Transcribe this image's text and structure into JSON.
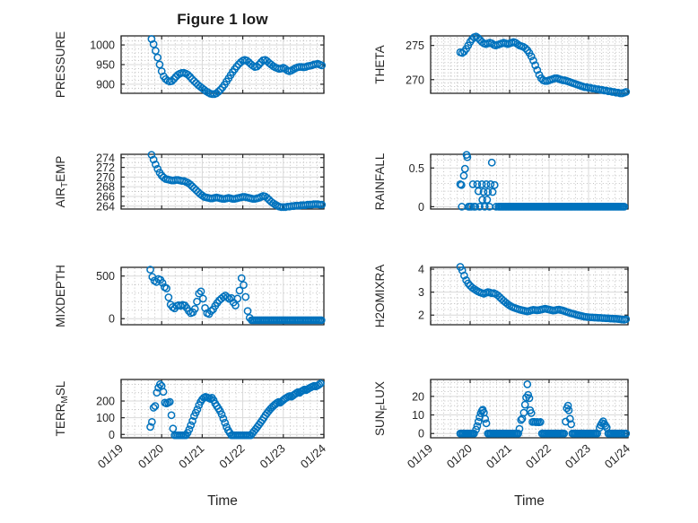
{
  "figure": {
    "title": "Figure 1 low",
    "xlabel": "Time"
  },
  "style": {
    "marker_color": "#0072BD",
    "axis_color": "#262626",
    "text_color": "#262626",
    "major_grid": "#d9d9d9",
    "minor_grid": "#b0b0b0",
    "background": "#ffffff",
    "marker_radius": 3.6,
    "marker_stroke": 1.5
  },
  "x_axis": {
    "lim": [
      19,
      24
    ],
    "ticks": [
      19,
      20,
      21,
      22,
      23,
      24
    ],
    "labels": [
      "01/19",
      "01/20",
      "01/21",
      "01/22",
      "01/23",
      "01/24"
    ],
    "minor_per_day": 6,
    "label": "Time"
  },
  "chart_data": [
    {
      "type": "scatter",
      "name": "PRESSURE",
      "row": 0,
      "col": 0,
      "ylabel_parts": [
        {
          "t": "PRESSURE"
        }
      ],
      "ylim": [
        877,
        1023
      ],
      "yticks": [
        900,
        950,
        1000
      ],
      "ytick_labels": [
        "900",
        "950",
        "1000"
      ],
      "yminor": 10,
      "series": {
        "t0": 19.75,
        "dt": 0.05,
        "y": [
          1015,
          1002,
          985,
          968,
          950,
          933,
          920,
          913,
          909,
          907,
          908,
          913,
          919,
          924,
          927,
          929,
          929,
          927,
          924,
          919,
          913,
          908,
          903,
          898,
          894,
          890,
          886,
          882,
          879,
          876,
          875,
          875,
          877,
          881,
          886,
          892,
          899,
          907,
          915,
          923,
          931,
          938,
          945,
          951,
          956,
          960,
          962,
          960,
          956,
          951,
          947,
          944,
          945,
          950,
          956,
          961,
          962,
          959,
          954,
          950,
          946,
          943,
          941,
          939,
          940,
          942,
          939,
          935,
          933,
          935,
          938,
          941,
          943,
          944,
          944,
          943,
          944,
          946,
          947,
          948,
          950,
          951,
          952,
          950,
          948
        ]
      }
    },
    {
      "type": "scatter",
      "name": "THETA",
      "row": 0,
      "col": 1,
      "ylabel_parts": [
        {
          "t": "THETA"
        }
      ],
      "ylim": [
        268.0,
        276.4
      ],
      "yticks": [
        270,
        275
      ],
      "ytick_labels": [
        "270",
        "275"
      ],
      "yminor": 0.5,
      "series": {
        "t0": 19.75,
        "dt": 0.05,
        "y": [
          274.0,
          273.9,
          274.1,
          274.5,
          275.0,
          275.5,
          275.9,
          276.2,
          276.3,
          276.1,
          275.8,
          275.5,
          275.3,
          275.2,
          275.3,
          275.4,
          275.3,
          275.1,
          275.0,
          275.1,
          275.2,
          275.3,
          275.4,
          275.3,
          275.2,
          275.3,
          275.4,
          275.5,
          275.4,
          275.2,
          275.0,
          274.9,
          274.8,
          274.6,
          274.3,
          273.9,
          273.4,
          272.8,
          272.1,
          271.4,
          270.7,
          270.2,
          269.9,
          269.8,
          269.8,
          269.9,
          270.0,
          270.1,
          270.2,
          270.2,
          270.1,
          270.0,
          269.9,
          269.9,
          269.8,
          269.7,
          269.6,
          269.5,
          269.4,
          269.3,
          269.2,
          269.1,
          269.0,
          268.9,
          268.9,
          268.8,
          268.8,
          268.7,
          268.7,
          268.6,
          268.6,
          268.5,
          268.5,
          268.4,
          268.4,
          268.3,
          268.3,
          268.2,
          268.2,
          268.1,
          268.1,
          268.0,
          268.0,
          268.1,
          268.2
        ]
      }
    },
    {
      "type": "scatter",
      "name": "AIR_TEMP",
      "row": 1,
      "col": 0,
      "ylabel_parts": [
        {
          "t": "AIR"
        },
        {
          "t": "T",
          "sub": true
        },
        {
          "t": "EMP"
        }
      ],
      "ylim": [
        263.4,
        274.7
      ],
      "yticks": [
        264,
        266,
        268,
        270,
        272,
        274
      ],
      "ytick_labels": [
        "264",
        "266",
        "268",
        "270",
        "272",
        "274"
      ],
      "yminor": 1,
      "series": {
        "t0": 19.75,
        "dt": 0.05,
        "y": [
          274.6,
          273.6,
          272.6,
          271.7,
          270.9,
          270.3,
          269.9,
          269.6,
          269.5,
          269.4,
          269.3,
          269.3,
          269.4,
          269.4,
          269.3,
          269.2,
          269.2,
          269.0,
          268.8,
          268.5,
          268.1,
          267.7,
          267.3,
          266.9,
          266.5,
          266.2,
          265.9,
          265.8,
          265.7,
          265.6,
          265.6,
          265.7,
          265.8,
          265.7,
          265.6,
          265.5,
          265.5,
          265.6,
          265.7,
          265.6,
          265.5,
          265.5,
          265.6,
          265.7,
          265.8,
          265.9,
          265.9,
          265.8,
          265.7,
          265.6,
          265.5,
          265.5,
          265.6,
          265.7,
          265.9,
          266.1,
          266.0,
          265.7,
          265.3,
          264.9,
          264.6,
          264.3,
          264.1,
          263.9,
          263.8,
          263.8,
          263.8,
          263.9,
          263.9,
          264.0,
          264.0,
          264.1,
          264.1,
          264.1,
          264.2,
          264.2,
          264.2,
          264.3,
          264.3,
          264.3,
          264.4,
          264.4,
          264.4,
          264.3,
          264.3
        ]
      }
    },
    {
      "type": "scatter",
      "name": "RAINFALL",
      "row": 1,
      "col": 1,
      "ylabel_parts": [
        {
          "t": "RAINFALL"
        }
      ],
      "ylim": [
        -0.03,
        0.677
      ],
      "yticks": [
        0,
        0.5
      ],
      "ytick_labels": [
        "0",
        "0.5"
      ],
      "yminor": 0.1,
      "points": [
        [
          19.75,
          0.29
        ],
        [
          19.78,
          0.28
        ],
        [
          19.84,
          0.4
        ],
        [
          19.87,
          0.49
        ],
        [
          19.91,
          0.67
        ],
        [
          19.93,
          0.64
        ],
        [
          19.79,
          0
        ],
        [
          19.96,
          0
        ],
        [
          19.99,
          0
        ],
        [
          20.03,
          0
        ],
        [
          20.07,
          0.29
        ],
        [
          20.1,
          0
        ],
        [
          20.13,
          0
        ],
        [
          20.18,
          0.29
        ],
        [
          20.21,
          0.2
        ],
        [
          20.24,
          0
        ],
        [
          20.3,
          0.29
        ],
        [
          20.31,
          0.09
        ],
        [
          20.34,
          0.19
        ],
        [
          20.37,
          0
        ],
        [
          20.41,
          0.29
        ],
        [
          20.43,
          0.09
        ],
        [
          20.45,
          0.19
        ],
        [
          20.49,
          0
        ],
        [
          20.52,
          0.29
        ],
        [
          20.55,
          0.57
        ],
        [
          20.57,
          0.19
        ],
        [
          20.62,
          0.28
        ],
        [
          20.66,
          0
        ]
      ],
      "runs": [
        {
          "t0": 20.72,
          "t1": 23.93,
          "dt": 0.035,
          "v": 0
        }
      ]
    },
    {
      "type": "scatter",
      "name": "MIXDEPTH",
      "row": 2,
      "col": 0,
      "ylabel_parts": [
        {
          "t": "MIXDEPTH"
        }
      ],
      "ylim": [
        -71,
        602
      ],
      "yticks": [
        0,
        500
      ],
      "ytick_labels": [
        "0",
        "500"
      ],
      "yminor": 100,
      "series": {
        "t0": 19.72,
        "dt": 0.05,
        "y": [
          575,
          490,
          445,
          430,
          465,
          455,
          420,
          370,
          355,
          250,
          165,
          135,
          120,
          150,
          158,
          150,
          162,
          155,
          125,
          90,
          65,
          75,
          115,
          200,
          295,
          320,
          235,
          125,
          65,
          55,
          90,
          110,
          150,
          185,
          215,
          235,
          255,
          272,
          250,
          232,
          242,
          190,
          155,
          235,
          330,
          475,
          395,
          255,
          90,
          10
        ]
      },
      "runs": [
        {
          "t0": 22.22,
          "t1": 23.94,
          "dt": 0.04,
          "v": -18
        }
      ]
    },
    {
      "type": "scatter",
      "name": "H2OMIXRA",
      "row": 2,
      "col": 1,
      "ylabel_parts": [
        {
          "t": "H2OMIXRA"
        }
      ],
      "ylim": [
        1.58,
        4.08
      ],
      "yticks": [
        2,
        3,
        4
      ],
      "ytick_labels": [
        "2",
        "3",
        "4"
      ],
      "yminor": 0.25,
      "series": {
        "t0": 19.75,
        "dt": 0.05,
        "y": [
          4.1,
          3.95,
          3.72,
          3.52,
          3.38,
          3.28,
          3.2,
          3.14,
          3.08,
          3.03,
          2.99,
          2.96,
          2.93,
          2.97,
          3.0,
          2.98,
          2.95,
          2.96,
          2.92,
          2.86,
          2.78,
          2.7,
          2.62,
          2.55,
          2.48,
          2.42,
          2.37,
          2.33,
          2.3,
          2.27,
          2.24,
          2.22,
          2.2,
          2.18,
          2.16,
          2.18,
          2.21,
          2.23,
          2.22,
          2.21,
          2.22,
          2.24,
          2.26,
          2.28,
          2.26,
          2.24,
          2.22,
          2.2,
          2.21,
          2.23,
          2.24,
          2.22,
          2.2,
          2.17,
          2.14,
          2.11,
          2.08,
          2.06,
          2.04,
          2.01,
          1.99,
          1.97,
          1.95,
          1.93,
          1.92,
          1.91,
          1.9,
          1.9,
          1.89,
          1.89,
          1.88,
          1.88,
          1.87,
          1.87,
          1.86,
          1.86,
          1.85,
          1.85,
          1.84,
          1.84,
          1.83,
          1.82,
          1.81,
          1.8,
          1.82
        ]
      }
    },
    {
      "type": "scatter",
      "name": "TERR_MSL",
      "row": 3,
      "col": 0,
      "ylabel_parts": [
        {
          "t": "TERR"
        },
        {
          "t": "M",
          "sub": true
        },
        {
          "t": "SL"
        }
      ],
      "ylim": [
        -20,
        329
      ],
      "yticks": [
        0,
        100,
        200
      ],
      "ytick_labels": [
        "0",
        "100",
        "200"
      ],
      "yminor": 50,
      "series": {
        "t0": 19.72,
        "dt": 0.04,
        "y": [
          45,
          75,
          160,
          170,
          250,
          280,
          300,
          290,
          255,
          190,
          185,
          190,
          195,
          115,
          35,
          -5,
          -5,
          -5,
          -5,
          -5,
          -5,
          -5,
          -5,
          10,
          30,
          55,
          80,
          110,
          130,
          150,
          175,
          195,
          210,
          220,
          225,
          222,
          218,
          213,
          220,
          205,
          185,
          170,
          155,
          140,
          120,
          95,
          70,
          45,
          25,
          10,
          -5,
          -5,
          -5,
          -5,
          -5,
          -5,
          -5,
          -5,
          -5,
          -5,
          -5,
          -5,
          -5,
          8,
          20,
          32,
          45,
          58,
          72,
          85,
          100,
          115,
          128,
          140,
          152,
          162,
          172,
          180,
          188,
          194,
          190,
          198,
          206,
          214,
          220,
          226,
          230,
          226,
          233,
          240,
          247,
          253,
          249,
          257,
          263,
          269,
          265,
          271,
          277,
          282,
          287,
          291,
          287,
          292,
          298,
          305
        ]
      }
    },
    {
      "type": "scatter",
      "name": "SUN_FLUX",
      "row": 3,
      "col": 1,
      "ylabel_parts": [
        {
          "t": "SUN"
        },
        {
          "t": "F",
          "sub": true
        },
        {
          "t": "LUX"
        }
      ],
      "ylim": [
        -2.3,
        29.1
      ],
      "yticks": [
        0,
        10,
        20
      ],
      "ytick_labels": [
        "0",
        "10",
        "20"
      ],
      "yminor": 2.5,
      "points": [
        [
          20.15,
          2.1
        ],
        [
          20.18,
          4.0
        ],
        [
          20.21,
          6.4
        ],
        [
          20.24,
          8.8
        ],
        [
          20.27,
          10.9
        ],
        [
          20.3,
          12.2
        ],
        [
          20.32,
          12.8
        ],
        [
          20.35,
          11.2
        ],
        [
          20.38,
          7.9
        ],
        [
          20.41,
          5.5
        ],
        [
          21.25,
          2.5
        ],
        [
          21.29,
          7.3
        ],
        [
          21.32,
          8.0
        ],
        [
          21.36,
          11.2
        ],
        [
          21.39,
          15.5
        ],
        [
          21.42,
          19.4
        ],
        [
          21.45,
          26.5
        ],
        [
          21.47,
          20.8
        ],
        [
          21.5,
          19.0
        ],
        [
          21.52,
          12.5
        ],
        [
          21.55,
          11.0
        ],
        [
          21.58,
          6.2
        ],
        [
          21.62,
          6.3
        ],
        [
          21.66,
          6.1
        ],
        [
          21.7,
          6.2
        ],
        [
          21.74,
          6.0
        ],
        [
          21.78,
          6.2
        ],
        [
          22.42,
          6.4
        ],
        [
          22.45,
          13.6
        ],
        [
          22.48,
          15.0
        ],
        [
          22.5,
          12.5
        ],
        [
          22.53,
          7.9
        ],
        [
          22.56,
          5.0
        ],
        [
          23.28,
          3.1
        ],
        [
          23.31,
          4.5
        ],
        [
          23.34,
          5.6
        ],
        [
          23.37,
          6.6
        ],
        [
          23.4,
          5.2
        ],
        [
          23.43,
          4.2
        ],
        [
          23.46,
          3.2
        ],
        [
          23.9,
          0
        ],
        [
          23.95,
          0
        ]
      ],
      "runs": [
        {
          "t0": 19.75,
          "t1": 20.12,
          "dt": 0.035,
          "v": 0
        },
        {
          "t0": 20.45,
          "t1": 21.22,
          "dt": 0.035,
          "v": 0
        },
        {
          "t0": 21.82,
          "t1": 22.39,
          "dt": 0.035,
          "v": 0
        },
        {
          "t0": 22.59,
          "t1": 23.25,
          "dt": 0.035,
          "v": 0
        },
        {
          "t0": 23.5,
          "t1": 23.86,
          "dt": 0.035,
          "v": 0
        }
      ]
    }
  ]
}
